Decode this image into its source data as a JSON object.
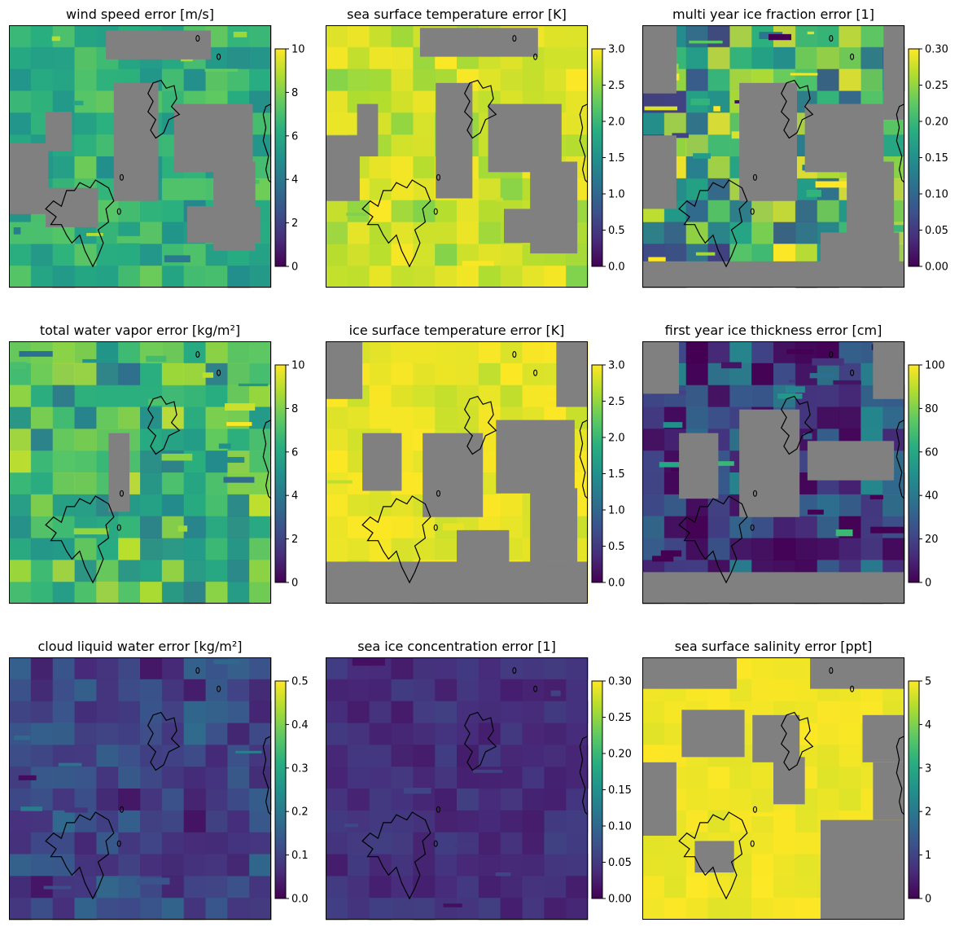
{
  "colormap": "viridis",
  "land_fill_color": "#808080",
  "coastline_color": "#000000",
  "chart_data": [
    {
      "type": "heatmap",
      "title": "wind speed error [m/s]",
      "clim": [
        0,
        10
      ],
      "colorbar_ticks": [
        "0",
        "2",
        "4",
        "6",
        "8",
        "10"
      ],
      "dominant_value": 6.2,
      "spread": 1.8,
      "speckle": 0.4
    },
    {
      "type": "heatmap",
      "title": "sea surface temperature error [K]",
      "clim": [
        0,
        3
      ],
      "colorbar_ticks": [
        "0.0",
        "0.5",
        "1.0",
        "1.5",
        "2.0",
        "2.5",
        "3.0"
      ],
      "dominant_value": 2.75,
      "spread": 0.35,
      "speckle": 0.15
    },
    {
      "type": "heatmap",
      "title": "multi year ice fraction error [1]",
      "clim": [
        0,
        0.3
      ],
      "colorbar_ticks": [
        "0.00",
        "0.05",
        "0.10",
        "0.15",
        "0.20",
        "0.25",
        "0.30"
      ],
      "dominant_value": 0.18,
      "spread": 0.14,
      "speckle": 0.9
    },
    {
      "type": "heatmap",
      "title": "total water vapor error [kg/m²]",
      "clim": [
        0,
        10
      ],
      "colorbar_ticks": [
        "0",
        "2",
        "4",
        "6",
        "8",
        "10"
      ],
      "dominant_value": 6.5,
      "spread": 3.0,
      "speckle": 0.5
    },
    {
      "type": "heatmap",
      "title": "ice surface temperature error [K]",
      "clim": [
        0,
        3
      ],
      "colorbar_ticks": [
        "0.0",
        "0.5",
        "1.0",
        "1.5",
        "2.0",
        "2.5",
        "3.0"
      ],
      "dominant_value": 2.9,
      "spread": 0.2,
      "speckle": 0.1
    },
    {
      "type": "heatmap",
      "title": "first year ice thickness error [cm]",
      "clim": [
        0,
        100
      ],
      "colorbar_ticks": [
        "0",
        "20",
        "40",
        "60",
        "80",
        "100"
      ],
      "dominant_value": 15,
      "spread": 35,
      "speckle": 0.8
    },
    {
      "type": "heatmap",
      "title": "cloud liquid water error [kg/m²]",
      "clim": [
        0,
        0.5
      ],
      "colorbar_ticks": [
        "0.0",
        "0.1",
        "0.2",
        "0.3",
        "0.4",
        "0.5"
      ],
      "dominant_value": 0.1,
      "spread": 0.08,
      "speckle": 0.3
    },
    {
      "type": "heatmap",
      "title": "sea ice concentration error [1]",
      "clim": [
        0,
        0.3
      ],
      "colorbar_ticks": [
        "0.00",
        "0.05",
        "0.10",
        "0.15",
        "0.20",
        "0.25",
        "0.30"
      ],
      "dominant_value": 0.04,
      "spread": 0.02,
      "speckle": 0.3
    },
    {
      "type": "heatmap",
      "title": "sea surface salinity error [ppt]",
      "clim": [
        0,
        5
      ],
      "colorbar_ticks": [
        "0",
        "1",
        "2",
        "3",
        "4",
        "5"
      ],
      "dominant_value": 4.9,
      "spread": 0.15,
      "speckle": 0.1
    }
  ]
}
